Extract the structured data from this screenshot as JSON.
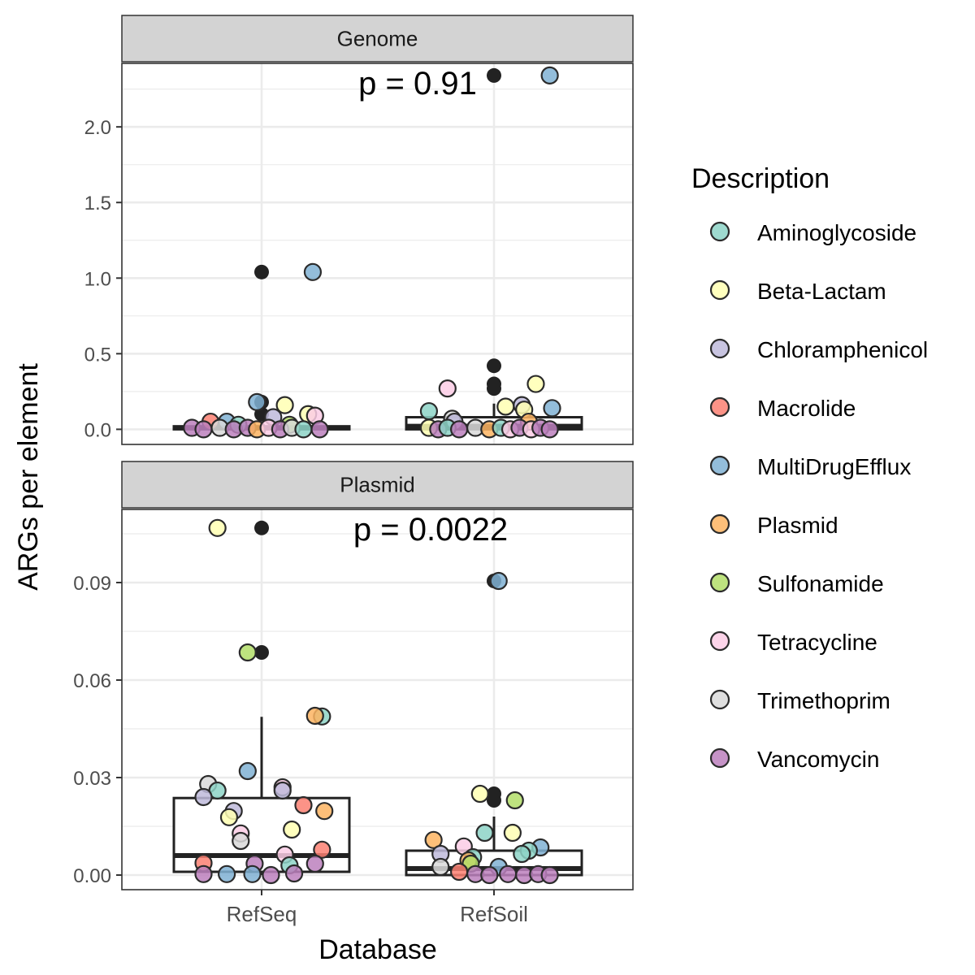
{
  "chart_data": {
    "type": "box-jitter",
    "xlabel": "Database",
    "ylabel": "ARGs per element",
    "categories": [
      "RefSeq",
      "RefSoil"
    ],
    "legend": {
      "title": "Description",
      "position": "right",
      "entries": [
        {
          "name": "Aminoglycoside",
          "color": "#8DD3C7"
        },
        {
          "name": "Beta-Lactam",
          "color": "#FFFFB3"
        },
        {
          "name": "Chloramphenicol",
          "color": "#BEBADA"
        },
        {
          "name": "Macrolide",
          "color": "#FB8072"
        },
        {
          "name": "MultiDrugEfflux",
          "color": "#80B1D3"
        },
        {
          "name": "Plasmid",
          "color": "#FDB462"
        },
        {
          "name": "Sulfonamide",
          "color": "#B3DE69"
        },
        {
          "name": "Tetracycline",
          "color": "#FCCDE5"
        },
        {
          "name": "Trimethoprim",
          "color": "#D9D9D9"
        },
        {
          "name": "Vancomycin",
          "color": "#BC80BD"
        }
      ]
    },
    "panels": [
      {
        "title": "Genome",
        "annotation": "p = 0.91",
        "ylim": [
          -0.1,
          2.42
        ],
        "yticks": [
          0.0,
          0.5,
          1.0,
          1.5,
          2.0
        ],
        "ytick_labels": [
          "0.0",
          "0.5",
          "1.0",
          "1.5",
          "2.0"
        ],
        "boxes": [
          {
            "category": "RefSeq",
            "q1": 0.0,
            "median": 0.01,
            "q3": 0.02,
            "whisker_low": 0.0,
            "whisker_high": 0.04
          },
          {
            "category": "RefSoil",
            "q1": 0.0,
            "median": 0.02,
            "q3": 0.08,
            "whisker_low": 0.0,
            "whisker_high": 0.17
          }
        ],
        "outliers": [
          {
            "category": "RefSeq",
            "y": 1.04
          },
          {
            "category": "RefSeq",
            "y": 0.18
          },
          {
            "category": "RefSeq",
            "y": 0.1
          },
          {
            "category": "RefSoil",
            "y": 2.34
          },
          {
            "category": "RefSoil",
            "y": 0.42
          },
          {
            "category": "RefSoil",
            "y": 0.3
          },
          {
            "category": "RefSoil",
            "y": 0.27
          }
        ],
        "points": [
          {
            "category": "RefSeq",
            "jitter": 0.22,
            "y": 1.04,
            "group": "MultiDrugEfflux"
          },
          {
            "category": "RefSeq",
            "jitter": -0.02,
            "y": 0.18,
            "group": "MultiDrugEfflux"
          },
          {
            "category": "RefSeq",
            "jitter": 0.1,
            "y": 0.16,
            "group": "Beta-Lactam"
          },
          {
            "category": "RefSeq",
            "jitter": 0.2,
            "y": 0.1,
            "group": "Beta-Lactam"
          },
          {
            "category": "RefSeq",
            "jitter": 0.23,
            "y": 0.09,
            "group": "Tetracycline"
          },
          {
            "category": "RefSeq",
            "jitter": 0.05,
            "y": 0.08,
            "group": "Chloramphenicol"
          },
          {
            "category": "RefSeq",
            "jitter": -0.15,
            "y": 0.05,
            "group": "MultiDrugEfflux"
          },
          {
            "category": "RefSeq",
            "jitter": -0.22,
            "y": 0.05,
            "group": "Macrolide"
          },
          {
            "category": "RefSeq",
            "jitter": -0.1,
            "y": 0.03,
            "group": "Aminoglycoside"
          },
          {
            "category": "RefSeq",
            "jitter": 0.12,
            "y": 0.03,
            "group": "Sulfonamide"
          },
          {
            "category": "RefSeq",
            "jitter": -0.3,
            "y": 0.01,
            "group": "Vancomycin"
          },
          {
            "category": "RefSeq",
            "jitter": -0.25,
            "y": 0.0,
            "group": "Vancomycin"
          },
          {
            "category": "RefSeq",
            "jitter": -0.18,
            "y": 0.01,
            "group": "Trimethoprim"
          },
          {
            "category": "RefSeq",
            "jitter": -0.12,
            "y": 0.0,
            "group": "Vancomycin"
          },
          {
            "category": "RefSeq",
            "jitter": -0.06,
            "y": 0.01,
            "group": "Vancomycin"
          },
          {
            "category": "RefSeq",
            "jitter": -0.02,
            "y": 0.0,
            "group": "Plasmid"
          },
          {
            "category": "RefSeq",
            "jitter": 0.03,
            "y": 0.01,
            "group": "Tetracycline"
          },
          {
            "category": "RefSeq",
            "jitter": 0.08,
            "y": 0.0,
            "group": "Vancomycin"
          },
          {
            "category": "RefSeq",
            "jitter": 0.13,
            "y": 0.01,
            "group": "Trimethoprim"
          },
          {
            "category": "RefSeq",
            "jitter": 0.18,
            "y": 0.0,
            "group": "Aminoglycoside"
          },
          {
            "category": "RefSeq",
            "jitter": 0.25,
            "y": 0.0,
            "group": "Vancomycin"
          },
          {
            "category": "RefSoil",
            "jitter": 0.24,
            "y": 2.34,
            "group": "MultiDrugEfflux"
          },
          {
            "category": "RefSoil",
            "jitter": -0.2,
            "y": 0.27,
            "group": "Tetracycline"
          },
          {
            "category": "RefSoil",
            "jitter": 0.18,
            "y": 0.3,
            "group": "Beta-Lactam"
          },
          {
            "category": "RefSoil",
            "jitter": 0.12,
            "y": 0.16,
            "group": "Chloramphenicol"
          },
          {
            "category": "RefSoil",
            "jitter": 0.05,
            "y": 0.15,
            "group": "Beta-Lactam"
          },
          {
            "category": "RefSoil",
            "jitter": 0.25,
            "y": 0.14,
            "group": "MultiDrugEfflux"
          },
          {
            "category": "RefSoil",
            "jitter": 0.13,
            "y": 0.13,
            "group": "Beta-Lactam"
          },
          {
            "category": "RefSoil",
            "jitter": -0.28,
            "y": 0.12,
            "group": "Aminoglycoside"
          },
          {
            "category": "RefSoil",
            "jitter": -0.18,
            "y": 0.07,
            "group": "Trimethoprim"
          },
          {
            "category": "RefSoil",
            "jitter": -0.17,
            "y": 0.05,
            "group": "Chloramphenicol"
          },
          {
            "category": "RefSoil",
            "jitter": 0.15,
            "y": 0.05,
            "group": "Plasmid"
          },
          {
            "category": "RefSoil",
            "jitter": -0.28,
            "y": 0.01,
            "group": "Beta-Lactam"
          },
          {
            "category": "RefSoil",
            "jitter": -0.24,
            "y": 0.0,
            "group": "Vancomycin"
          },
          {
            "category": "RefSoil",
            "jitter": -0.2,
            "y": 0.01,
            "group": "Aminoglycoside"
          },
          {
            "category": "RefSoil",
            "jitter": -0.15,
            "y": 0.0,
            "group": "Vancomycin"
          },
          {
            "category": "RefSoil",
            "jitter": -0.08,
            "y": 0.01,
            "group": "Trimethoprim"
          },
          {
            "category": "RefSoil",
            "jitter": -0.02,
            "y": 0.0,
            "group": "Plasmid"
          },
          {
            "category": "RefSoil",
            "jitter": 0.03,
            "y": 0.01,
            "group": "Aminoglycoside"
          },
          {
            "category": "RefSoil",
            "jitter": 0.07,
            "y": 0.0,
            "group": "Tetracycline"
          },
          {
            "category": "RefSoil",
            "jitter": 0.11,
            "y": 0.01,
            "group": "Vancomycin"
          },
          {
            "category": "RefSoil",
            "jitter": 0.16,
            "y": 0.0,
            "group": "Tetracycline"
          },
          {
            "category": "RefSoil",
            "jitter": 0.2,
            "y": 0.01,
            "group": "Vancomycin"
          },
          {
            "category": "RefSoil",
            "jitter": 0.24,
            "y": 0.0,
            "group": "Vancomycin"
          }
        ]
      },
      {
        "title": "Plasmid",
        "annotation": "p = 0.0022",
        "ylim": [
          -0.0045,
          0.1125
        ],
        "yticks": [
          0.0,
          0.03,
          0.06,
          0.09
        ],
        "ytick_labels": [
          "0.00",
          "0.03",
          "0.06",
          "0.09"
        ],
        "boxes": [
          {
            "category": "RefSeq",
            "q1": 0.001,
            "median": 0.006,
            "q3": 0.0237,
            "whisker_low": 0.0,
            "whisker_high": 0.0487
          },
          {
            "category": "RefSoil",
            "q1": 0.0,
            "median": 0.002,
            "q3": 0.0075,
            "whisker_low": 0.0,
            "whisker_high": 0.018
          }
        ],
        "outliers": [
          {
            "category": "RefSeq",
            "y": 0.1068
          },
          {
            "category": "RefSeq",
            "y": 0.0685
          },
          {
            "category": "RefSoil",
            "y": 0.0905
          },
          {
            "category": "RefSoil",
            "y": 0.025
          },
          {
            "category": "RefSoil",
            "y": 0.023
          }
        ],
        "points": [
          {
            "category": "RefSeq",
            "jitter": -0.19,
            "y": 0.1068,
            "group": "Beta-Lactam"
          },
          {
            "category": "RefSeq",
            "jitter": -0.06,
            "y": 0.0685,
            "group": "Sulfonamide"
          },
          {
            "category": "RefSeq",
            "jitter": 0.26,
            "y": 0.0488,
            "group": "Aminoglycoside"
          },
          {
            "category": "RefSeq",
            "jitter": 0.23,
            "y": 0.049,
            "group": "Plasmid"
          },
          {
            "category": "RefSeq",
            "jitter": -0.06,
            "y": 0.032,
            "group": "MultiDrugEfflux"
          },
          {
            "category": "RefSeq",
            "jitter": -0.23,
            "y": 0.028,
            "group": "Trimethoprim"
          },
          {
            "category": "RefSeq",
            "jitter": -0.19,
            "y": 0.026,
            "group": "Aminoglycoside"
          },
          {
            "category": "RefSeq",
            "jitter": 0.09,
            "y": 0.027,
            "group": "Tetracycline"
          },
          {
            "category": "RefSeq",
            "jitter": 0.09,
            "y": 0.026,
            "group": "Chloramphenicol"
          },
          {
            "category": "RefSeq",
            "jitter": -0.25,
            "y": 0.024,
            "group": "Chloramphenicol"
          },
          {
            "category": "RefSeq",
            "jitter": 0.18,
            "y": 0.0215,
            "group": "Macrolide"
          },
          {
            "category": "RefSeq",
            "jitter": -0.12,
            "y": 0.0197,
            "group": "Chloramphenicol"
          },
          {
            "category": "RefSeq",
            "jitter": -0.14,
            "y": 0.0178,
            "group": "Beta-Lactam"
          },
          {
            "category": "RefSeq",
            "jitter": 0.27,
            "y": 0.0197,
            "group": "Plasmid"
          },
          {
            "category": "RefSeq",
            "jitter": 0.13,
            "y": 0.014,
            "group": "Beta-Lactam"
          },
          {
            "category": "RefSeq",
            "jitter": -0.09,
            "y": 0.0128,
            "group": "Tetracycline"
          },
          {
            "category": "RefSeq",
            "jitter": -0.09,
            "y": 0.0105,
            "group": "Trimethoprim"
          },
          {
            "category": "RefSeq",
            "jitter": 0.26,
            "y": 0.0078,
            "group": "Macrolide"
          },
          {
            "category": "RefSeq",
            "jitter": 0.1,
            "y": 0.0063,
            "group": "Tetracycline"
          },
          {
            "category": "RefSeq",
            "jitter": -0.25,
            "y": 0.0037,
            "group": "Macrolide"
          },
          {
            "category": "RefSeq",
            "jitter": -0.03,
            "y": 0.0035,
            "group": "Vancomycin"
          },
          {
            "category": "RefSeq",
            "jitter": 0.12,
            "y": 0.003,
            "group": "Aminoglycoside"
          },
          {
            "category": "RefSeq",
            "jitter": 0.23,
            "y": 0.0035,
            "group": "Vancomycin"
          },
          {
            "category": "RefSeq",
            "jitter": -0.25,
            "y": 0.0003,
            "group": "Vancomycin"
          },
          {
            "category": "RefSeq",
            "jitter": -0.15,
            "y": 0.0003,
            "group": "MultiDrugEfflux"
          },
          {
            "category": "RefSeq",
            "jitter": -0.04,
            "y": 0.0003,
            "group": "MultiDrugEfflux"
          },
          {
            "category": "RefSeq",
            "jitter": 0.04,
            "y": 0.0,
            "group": "Vancomycin"
          },
          {
            "category": "RefSeq",
            "jitter": 0.14,
            "y": 0.0005,
            "group": "Vancomycin"
          },
          {
            "category": "RefSoil",
            "jitter": 0.02,
            "y": 0.0905,
            "group": "MultiDrugEfflux"
          },
          {
            "category": "RefSoil",
            "jitter": -0.06,
            "y": 0.025,
            "group": "Beta-Lactam"
          },
          {
            "category": "RefSoil",
            "jitter": 0.09,
            "y": 0.023,
            "group": "Sulfonamide"
          },
          {
            "category": "RefSoil",
            "jitter": -0.04,
            "y": 0.013,
            "group": "Aminoglycoside"
          },
          {
            "category": "RefSoil",
            "jitter": 0.08,
            "y": 0.013,
            "group": "Beta-Lactam"
          },
          {
            "category": "RefSoil",
            "jitter": -0.26,
            "y": 0.0108,
            "group": "Plasmid"
          },
          {
            "category": "RefSoil",
            "jitter": -0.13,
            "y": 0.0088,
            "group": "Tetracycline"
          },
          {
            "category": "RefSoil",
            "jitter": 0.2,
            "y": 0.0085,
            "group": "MultiDrugEfflux"
          },
          {
            "category": "RefSoil",
            "jitter": 0.15,
            "y": 0.0075,
            "group": "Aminoglycoside"
          },
          {
            "category": "RefSoil",
            "jitter": -0.23,
            "y": 0.0065,
            "group": "Chloramphenicol"
          },
          {
            "category": "RefSoil",
            "jitter": 0.12,
            "y": 0.0065,
            "group": "Aminoglycoside"
          },
          {
            "category": "RefSoil",
            "jitter": -0.09,
            "y": 0.0055,
            "group": "Aminoglycoside"
          },
          {
            "category": "RefSoil",
            "jitter": -0.11,
            "y": 0.0045,
            "group": "Plasmid"
          },
          {
            "category": "RefSoil",
            "jitter": -0.1,
            "y": 0.0035,
            "group": "Sulfonamide"
          },
          {
            "category": "RefSoil",
            "jitter": -0.23,
            "y": 0.0025,
            "group": "Trimethoprim"
          },
          {
            "category": "RefSoil",
            "jitter": 0.02,
            "y": 0.0025,
            "group": "MultiDrugEfflux"
          },
          {
            "category": "RefSoil",
            "jitter": -0.15,
            "y": 0.001,
            "group": "Macrolide"
          },
          {
            "category": "RefSoil",
            "jitter": -0.08,
            "y": 0.0003,
            "group": "Vancomycin"
          },
          {
            "category": "RefSoil",
            "jitter": -0.02,
            "y": 0.0,
            "group": "Vancomycin"
          },
          {
            "category": "RefSoil",
            "jitter": 0.06,
            "y": 0.0003,
            "group": "Vancomycin"
          },
          {
            "category": "RefSoil",
            "jitter": 0.13,
            "y": 0.0,
            "group": "Vancomycin"
          },
          {
            "category": "RefSoil",
            "jitter": 0.19,
            "y": 0.0003,
            "group": "Vancomycin"
          },
          {
            "category": "RefSoil",
            "jitter": 0.24,
            "y": 0.0,
            "group": "Vancomycin"
          }
        ]
      }
    ]
  }
}
